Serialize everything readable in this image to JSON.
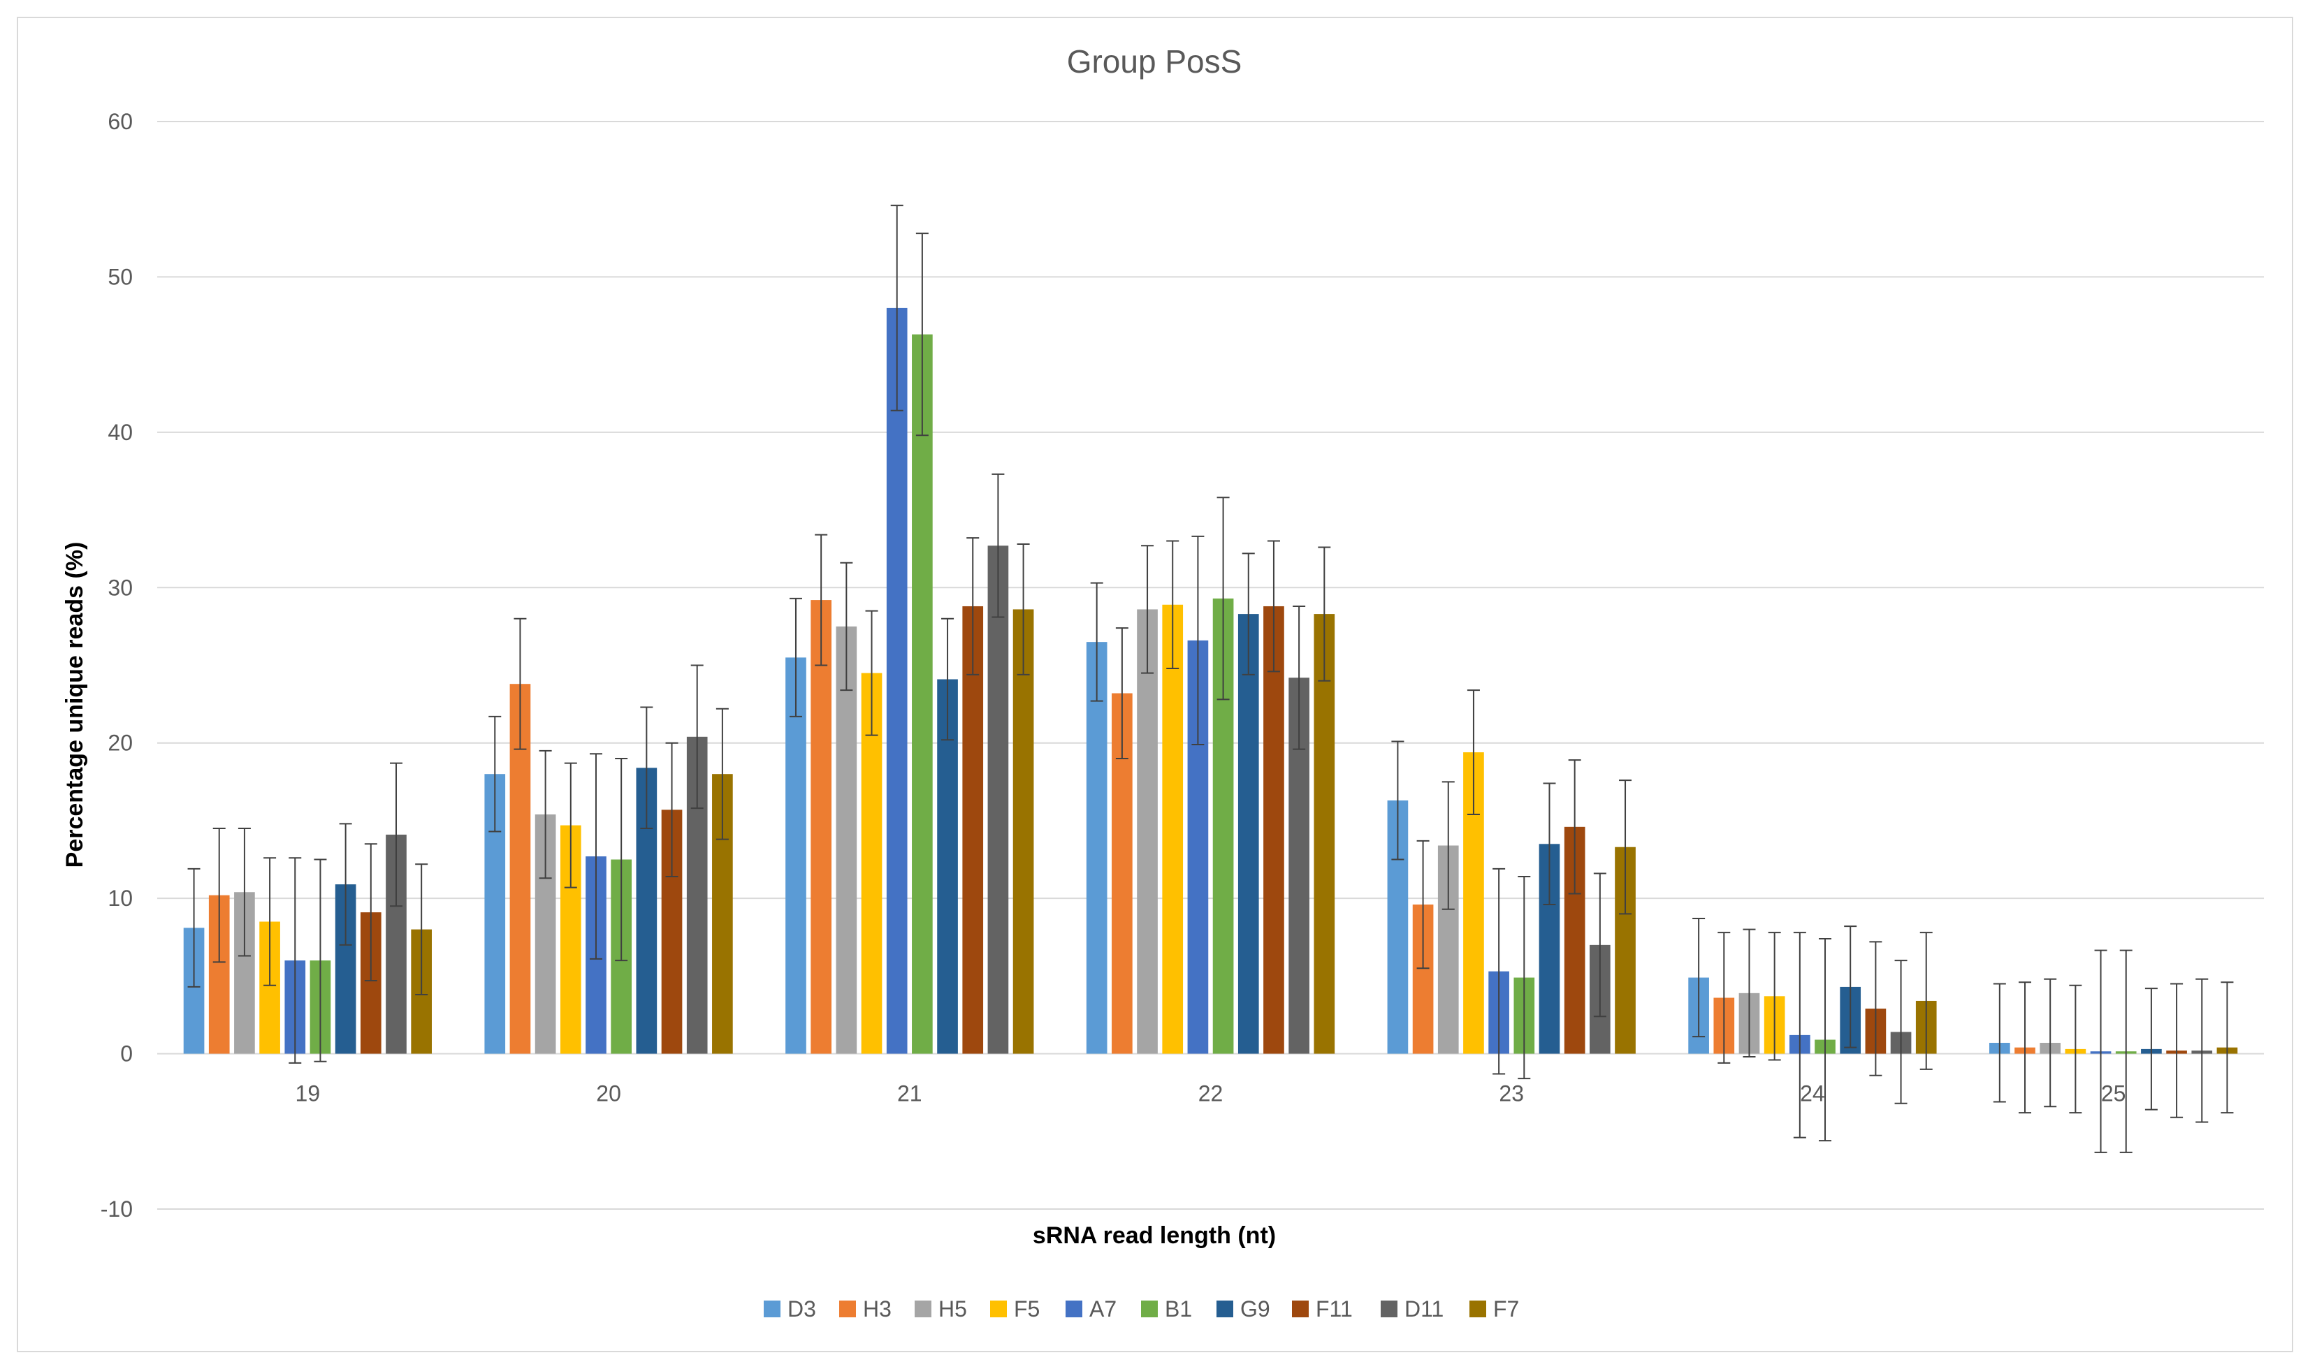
{
  "chart_data": {
    "type": "bar",
    "title": "Group PosS",
    "xlabel": "sRNA read length (nt)",
    "ylabel": "Percentage unique reads (%)",
    "ylim": [
      -10,
      60
    ],
    "yticks": [
      -10,
      0,
      10,
      20,
      30,
      40,
      50,
      60
    ],
    "grid": true,
    "legend_position": "bottom",
    "categories": [
      "19",
      "20",
      "21",
      "22",
      "23",
      "24",
      "25"
    ],
    "series": [
      {
        "name": "D3",
        "color": "#5B9BD5",
        "values": [
          8.1,
          18.0,
          25.5,
          26.5,
          16.3,
          4.9,
          0.7
        ],
        "errors": [
          3.8,
          3.7,
          3.8,
          3.8,
          3.8,
          3.8,
          3.8
        ]
      },
      {
        "name": "H3",
        "color": "#ED7D31",
        "values": [
          10.2,
          23.8,
          29.2,
          23.2,
          9.6,
          3.6,
          0.4
        ],
        "errors": [
          4.3,
          4.2,
          4.2,
          4.2,
          4.1,
          4.2,
          4.2
        ]
      },
      {
        "name": "H5",
        "color": "#A5A5A5",
        "values": [
          10.4,
          15.4,
          27.5,
          28.6,
          13.4,
          3.9,
          0.7
        ],
        "errors": [
          4.1,
          4.1,
          4.1,
          4.1,
          4.1,
          4.1,
          4.1
        ]
      },
      {
        "name": "F5",
        "color": "#FFC000",
        "values": [
          8.5,
          14.7,
          24.5,
          28.9,
          19.4,
          3.7,
          0.3
        ],
        "errors": [
          4.1,
          4.0,
          4.0,
          4.1,
          4.0,
          4.1,
          4.1
        ]
      },
      {
        "name": "A7",
        "color": "#4472C4",
        "values": [
          6.0,
          12.7,
          48.0,
          26.6,
          5.3,
          1.2,
          0.15
        ],
        "errors": [
          6.6,
          6.6,
          6.6,
          6.7,
          6.6,
          6.6,
          6.5
        ]
      },
      {
        "name": "B1",
        "color": "#70AD47",
        "values": [
          6.0,
          12.5,
          46.3,
          29.3,
          4.9,
          0.9,
          0.15
        ],
        "errors": [
          6.5,
          6.5,
          6.5,
          6.5,
          6.5,
          6.5,
          6.5
        ]
      },
      {
        "name": "G9",
        "color": "#255E91",
        "values": [
          10.9,
          18.4,
          24.1,
          28.3,
          13.5,
          4.3,
          0.3
        ],
        "errors": [
          3.9,
          3.9,
          3.9,
          3.9,
          3.9,
          3.9,
          3.9
        ]
      },
      {
        "name": "F11",
        "color": "#9E480E",
        "values": [
          9.1,
          15.7,
          28.8,
          28.8,
          14.6,
          2.9,
          0.2
        ],
        "errors": [
          4.4,
          4.3,
          4.4,
          4.2,
          4.3,
          4.3,
          4.3
        ]
      },
      {
        "name": "D11",
        "color": "#636363",
        "values": [
          14.1,
          20.4,
          32.7,
          24.2,
          7.0,
          1.4,
          0.2
        ],
        "errors": [
          4.6,
          4.6,
          4.6,
          4.6,
          4.6,
          4.6,
          4.6
        ]
      },
      {
        "name": "F7",
        "color": "#997300",
        "values": [
          8.0,
          18.0,
          28.6,
          28.3,
          13.3,
          3.4,
          0.4
        ],
        "errors": [
          4.2,
          4.2,
          4.2,
          4.3,
          4.3,
          4.4,
          4.2
        ]
      }
    ]
  }
}
